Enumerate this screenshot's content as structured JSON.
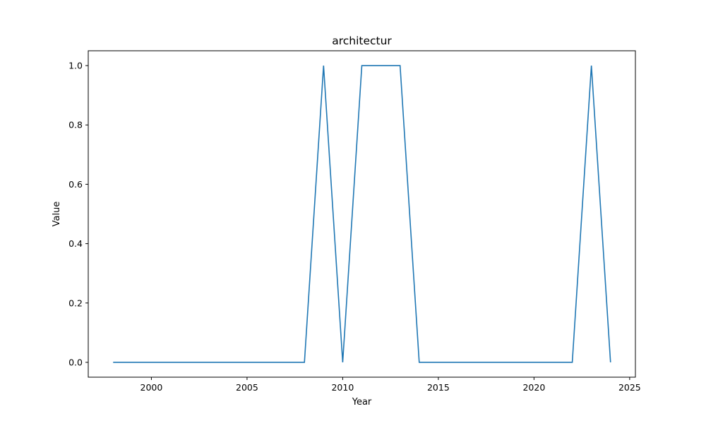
{
  "chart_data": {
    "type": "line",
    "title": "architectur",
    "xlabel": "Year",
    "ylabel": "Value",
    "xlim": [
      1996.7,
      2025.3
    ],
    "ylim": [
      -0.05,
      1.05
    ],
    "x_ticks": [
      2000,
      2005,
      2010,
      2015,
      2020,
      2025
    ],
    "y_ticks": [
      0.0,
      0.2,
      0.4,
      0.6,
      0.8,
      1.0
    ],
    "x_tick_labels": [
      "2000",
      "2005",
      "2010",
      "2015",
      "2020",
      "2025"
    ],
    "y_tick_labels": [
      "0.0",
      "0.2",
      "0.4",
      "0.6",
      "0.8",
      "1.0"
    ],
    "grid": false,
    "line_color": "#1f77b4",
    "series": [
      {
        "x": [
          1998,
          1999,
          2000,
          2001,
          2002,
          2003,
          2004,
          2005,
          2006,
          2007,
          2008,
          2009,
          2010,
          2011,
          2012,
          2013,
          2014,
          2015,
          2016,
          2017,
          2018,
          2019,
          2020,
          2021,
          2022,
          2023,
          2024
        ],
        "y": [
          0,
          0,
          0,
          0,
          0,
          0,
          0,
          0,
          0,
          0,
          0,
          1,
          0,
          1,
          1,
          1,
          0,
          0,
          0,
          0,
          0,
          0,
          0,
          0,
          0,
          1,
          0
        ]
      }
    ]
  }
}
